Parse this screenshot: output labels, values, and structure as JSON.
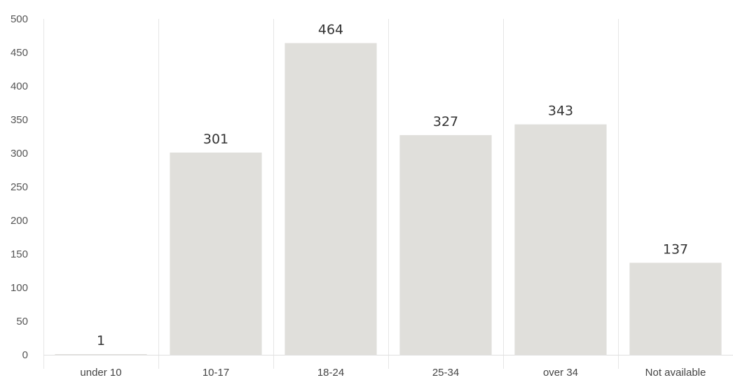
{
  "chart_data": {
    "type": "bar",
    "categories": [
      "under 10",
      "10-17",
      "18-24",
      "25-34",
      "over 34",
      "Not available"
    ],
    "values": [
      1,
      301,
      464,
      327,
      343,
      137
    ],
    "data_labels": [
      "1",
      "301",
      "464",
      "327",
      "343",
      "137"
    ],
    "title": "",
    "xlabel": "",
    "ylabel": "",
    "ylim": [
      0,
      500
    ],
    "yticks": [
      0,
      50,
      100,
      150,
      200,
      250,
      300,
      350,
      400,
      450,
      500
    ],
    "grid": "vertical separators",
    "legend": "none",
    "bar_color": "#e0dfdb"
  }
}
